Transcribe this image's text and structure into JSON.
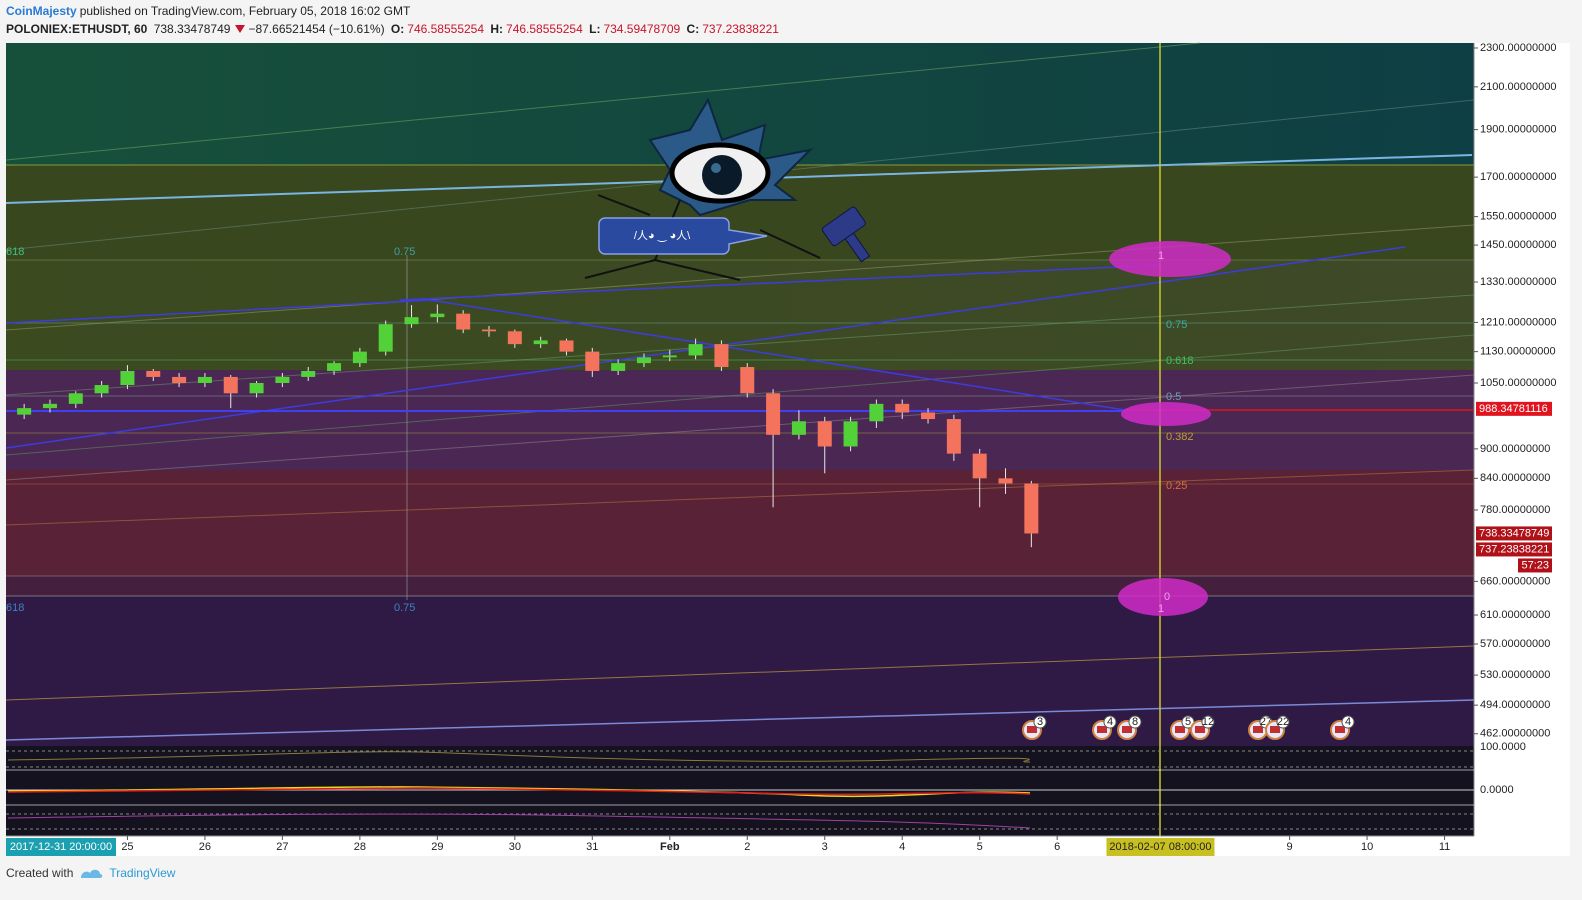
{
  "header": {
    "author": "CoinMajesty",
    "published": "published on TradingView.com, February 05, 2018 16:02 GMT"
  },
  "symbol": {
    "name": "POLONIEX:ETHUSDT, 60",
    "last": "738.33478749",
    "change": "−87.66521454 (−10.61%)",
    "o_label": "O:",
    "o": "746.58555254",
    "h_label": "H:",
    "h": "746.58555254",
    "l_label": "L:",
    "l": "734.59478709",
    "c_label": "C:",
    "c": "737.23838221"
  },
  "chart_data": {
    "type": "candlestick",
    "log_scale": true,
    "grid": false,
    "up_color": "#53d138",
    "down_color": "#f4735c",
    "xlim": [
      "2018-01-23 11:00",
      "2018-02-11 08:30"
    ],
    "ylim": [
      450,
      2327
    ],
    "x": [
      "2018-01-23 16:00",
      "2018-01-24 00:00",
      "2018-01-24 08:00",
      "2018-01-24 16:00",
      "2018-01-25 00:00",
      "2018-01-25 08:00",
      "2018-01-25 16:00",
      "2018-01-26 00:00",
      "2018-01-26 08:00",
      "2018-01-26 16:00",
      "2018-01-27 00:00",
      "2018-01-27 08:00",
      "2018-01-27 16:00",
      "2018-01-28 00:00",
      "2018-01-28 08:00",
      "2018-01-28 16:00",
      "2018-01-29 00:00",
      "2018-01-29 08:00",
      "2018-01-29 16:00",
      "2018-01-30 00:00",
      "2018-01-30 08:00",
      "2018-01-30 16:00",
      "2018-01-31 00:00",
      "2018-01-31 08:00",
      "2018-01-31 16:00",
      "2018-02-01 00:00",
      "2018-02-01 08:00",
      "2018-02-01 16:00",
      "2018-02-02 00:00",
      "2018-02-02 08:00",
      "2018-02-02 16:00",
      "2018-02-03 00:00",
      "2018-02-03 08:00",
      "2018-02-03 16:00",
      "2018-02-04 00:00",
      "2018-02-04 08:00",
      "2018-02-04 16:00",
      "2018-02-05 00:00",
      "2018-02-05 08:00",
      "2018-02-05 16:00"
    ],
    "open": [
      975,
      990,
      1000,
      1025,
      1045,
      1080,
      1065,
      1050,
      1065,
      1025,
      1050,
      1065,
      1080,
      1100,
      1130,
      1205,
      1225,
      1235,
      1190,
      1185,
      1150,
      1160,
      1130,
      1080,
      1100,
      1115,
      1120,
      1150,
      1090,
      1025,
      930,
      960,
      905,
      960,
      1000,
      980,
      965,
      890,
      840,
      830
    ],
    "high": [
      1000,
      1010,
      1030,
      1055,
      1095,
      1085,
      1075,
      1075,
      1070,
      1055,
      1075,
      1090,
      1105,
      1140,
      1215,
      1260,
      1262,
      1245,
      1200,
      1190,
      1170,
      1165,
      1140,
      1110,
      1125,
      1135,
      1165,
      1160,
      1100,
      1035,
      985,
      970,
      970,
      1010,
      1010,
      990,
      975,
      900,
      860,
      835
    ],
    "low": [
      965,
      980,
      990,
      1015,
      1035,
      1055,
      1040,
      1040,
      990,
      1015,
      1040,
      1055,
      1070,
      1090,
      1120,
      1195,
      1210,
      1180,
      1170,
      1140,
      1140,
      1120,
      1065,
      1070,
      1090,
      1105,
      1110,
      1080,
      1015,
      785,
      920,
      850,
      895,
      945,
      965,
      955,
      875,
      785,
      810,
      715
    ],
    "close": [
      990,
      1000,
      1025,
      1045,
      1080,
      1065,
      1050,
      1065,
      1025,
      1050,
      1065,
      1080,
      1100,
      1130,
      1205,
      1225,
      1235,
      1190,
      1185,
      1150,
      1160,
      1130,
      1080,
      1100,
      1115,
      1120,
      1150,
      1090,
      1025,
      930,
      960,
      905,
      960,
      1000,
      980,
      965,
      890,
      840,
      830,
      738.33478749
    ],
    "yticks": [
      {
        "value": 2300,
        "label": "2300.00000000"
      },
      {
        "value": 2100,
        "label": "2100.00000000"
      },
      {
        "value": 1900,
        "label": "1900.00000000"
      },
      {
        "value": 1700,
        "label": "1700.00000000"
      },
      {
        "value": 1550,
        "label": "1550.00000000"
      },
      {
        "value": 1450,
        "label": "1450.00000000"
      },
      {
        "value": 1330,
        "label": "1330.00000000"
      },
      {
        "value": 1210,
        "label": "1210.00000000"
      },
      {
        "value": 1130,
        "label": "1130.00000000"
      },
      {
        "value": 1050,
        "label": "1050.00000000"
      },
      {
        "value": 900,
        "label": "900.00000000"
      },
      {
        "value": 840,
        "label": "840.00000000"
      },
      {
        "value": 780,
        "label": "780.00000000"
      },
      {
        "value": 660,
        "label": "660.00000000"
      },
      {
        "value": 610,
        "label": "610.00000000"
      },
      {
        "value": 570,
        "label": "570.00000000"
      },
      {
        "value": 530,
        "label": "530.00000000"
      },
      {
        "value": 494,
        "label": "494.00000000"
      },
      {
        "value": 462,
        "label": "462.00000000"
      }
    ],
    "xticks": [
      {
        "value": "2018-01-25",
        "label": "25"
      },
      {
        "value": "2018-01-26",
        "label": "26"
      },
      {
        "value": "2018-01-27",
        "label": "27"
      },
      {
        "value": "2018-01-28",
        "label": "28"
      },
      {
        "value": "2018-01-29",
        "label": "29"
      },
      {
        "value": "2018-01-30",
        "label": "30"
      },
      {
        "value": "2018-01-31",
        "label": "31"
      },
      {
        "value": "2018-02-01",
        "label": "Feb"
      },
      {
        "value": "2018-02-02",
        "label": "2"
      },
      {
        "value": "2018-02-03",
        "label": "3"
      },
      {
        "value": "2018-02-04",
        "label": "4"
      },
      {
        "value": "2018-02-05",
        "label": "5"
      },
      {
        "value": "2018-02-06",
        "label": "6"
      },
      {
        "value": "2018-02-09",
        "label": "9"
      },
      {
        "value": "2018-02-10",
        "label": "10"
      },
      {
        "value": "2018-02-11",
        "label": "11"
      }
    ],
    "cursor_x": {
      "value": "2018-02-07 08:00",
      "label": "2018-02-07 08:00:00"
    },
    "cursor_left_label": "2017-12-31 20:00:00",
    "price_labels": [
      {
        "value": 988.34781116,
        "label": "988.34781116",
        "color": "#e0141e"
      },
      {
        "value": 738.33478749,
        "label": "738.33478749",
        "color": "#b01018"
      },
      {
        "value": 737.23838221,
        "label": "737.23838221",
        "color": "#b01018"
      }
    ],
    "countdown": "57:23",
    "fib_labels": {
      "f075": "0.75",
      "f0618": "0.618",
      "f05": "0.5",
      "f0382": "0.382",
      "f025": "0.25",
      "f0": "0",
      "f1": "1",
      "left_top": "618",
      "mid_top": "0.75",
      "left_bottom": "618",
      "mid_bottom": "0.75",
      "one_bottom": "1"
    },
    "indicator_ticks": [
      "100.0000",
      "0.0000"
    ],
    "bubble": "/人◕ ‿ ◕人\\",
    "events": [
      "3",
      "4",
      "8",
      "5",
      "12",
      "27",
      "22",
      "4"
    ]
  },
  "footer": {
    "created": "Created with",
    "brand": "TradingView"
  }
}
